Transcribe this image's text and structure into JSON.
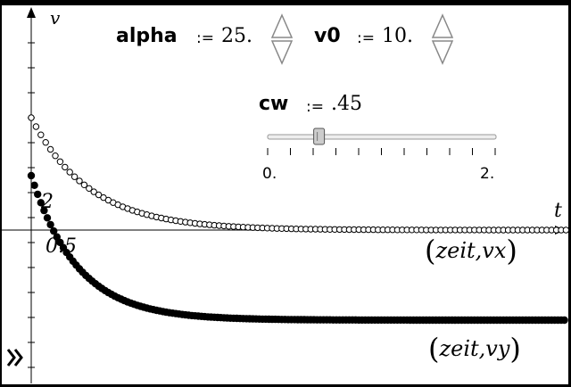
{
  "axes": {
    "x_label": "t",
    "y_label": "v"
  },
  "point_labels": {
    "p1": "2",
    "p2": "0.5"
  },
  "sliders": {
    "alpha": {
      "name": "alpha",
      "assign": ":=",
      "value": "25."
    },
    "v0": {
      "name": "v0",
      "assign": ":=",
      "value": "10."
    },
    "cw": {
      "name": "cw",
      "assign": ":=",
      "value": ".45",
      "min_label": "0.",
      "max_label": "2.",
      "fraction": 0.225
    }
  },
  "graph_labels": {
    "vx": {
      "open": "(",
      "var": "zeit,vx",
      "close": ")"
    },
    "vy": {
      "open": "(",
      "var": "zeit,vy",
      "close": ")"
    }
  },
  "icons": {
    "collapse": "double-chevron-right-icon",
    "spin": "triangle-updown-icon"
  }
}
